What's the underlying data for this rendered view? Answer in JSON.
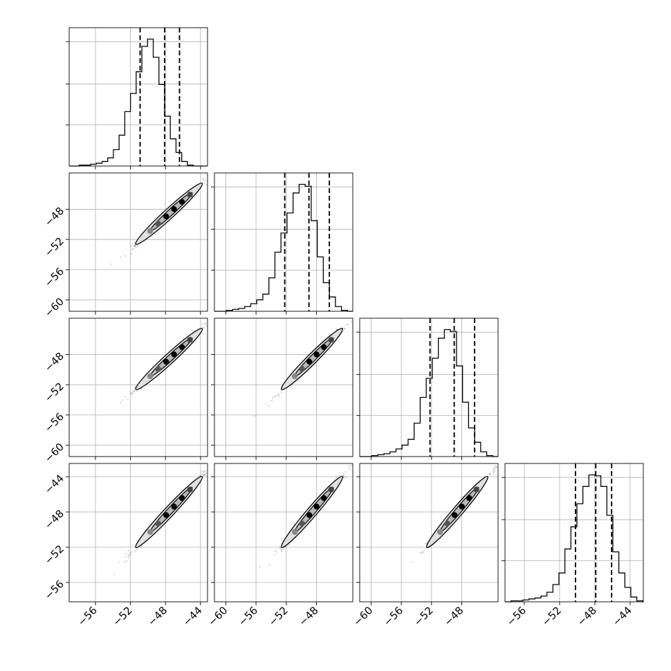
{
  "chart_data": {
    "type": "corner",
    "n_params": 4,
    "grid": true,
    "quantiles": [
      0.16,
      0.5,
      0.84
    ],
    "params": [
      {
        "mean": -47.6,
        "sd": 1.65,
        "range": [
          -59,
          -43.2
        ]
      },
      {
        "mean": -48.6,
        "sd": 1.75,
        "range": [
          -61.5,
          -43.2
        ]
      },
      {
        "mean": -48.6,
        "sd": 1.75,
        "range": [
          -61.5,
          -43.2
        ]
      },
      {
        "mean": -48.0,
        "sd": 1.75,
        "range": [
          -58.2,
          -42.5
        ]
      }
    ],
    "histograms": [
      {
        "param": 0,
        "quantile_values": [
          -50.9,
          -48.1,
          -46.4
        ],
        "edges_start": -58.5,
        "bin_width": 0.65,
        "counts": [
          0,
          1,
          1,
          2,
          3,
          5,
          9,
          18,
          34,
          60,
          80,
          104,
          132,
          140,
          120,
          90,
          55,
          30,
          15,
          5,
          1,
          0,
          0
        ]
      },
      {
        "param": 1,
        "quantile_values": [
          -52.2,
          -49.0,
          -46.3
        ],
        "edges_start": -61.5,
        "bin_width": 0.8,
        "counts": [
          0,
          0,
          1,
          2,
          3,
          5,
          8,
          12,
          18,
          35,
          62,
          82,
          103,
          124,
          133,
          131,
          95,
          57,
          30,
          15,
          5,
          1,
          0
        ]
      },
      {
        "param": 2,
        "quantile_values": [
          -52.2,
          -49.0,
          -46.3
        ],
        "edges_start": -61.5,
        "bin_width": 0.8,
        "counts": [
          0,
          0,
          1,
          2,
          3,
          5,
          8,
          12,
          18,
          35,
          62,
          82,
          103,
          124,
          133,
          131,
          95,
          57,
          30,
          15,
          5,
          1,
          0
        ]
      },
      {
        "param": 3,
        "quantile_values": [
          -50.2,
          -47.9,
          -46.1
        ],
        "edges_start": -58.2,
        "bin_width": 0.68,
        "counts": [
          0,
          1,
          1,
          2,
          3,
          4,
          6,
          10,
          18,
          30,
          55,
          78,
          102,
          120,
          132,
          131,
          120,
          90,
          52,
          30,
          15,
          5,
          1,
          0
        ]
      }
    ],
    "tick_labels": {
      "param_0_x": [
        "−56",
        "−52",
        "−48",
        "−44"
      ],
      "param_1_x": [
        "−60",
        "−56",
        "−52",
        "−48"
      ],
      "param_2_x": [
        "−60",
        "−56",
        "−52",
        "−48"
      ],
      "param_3_x": [
        "−56",
        "−52",
        "−48",
        "−44"
      ],
      "param_1_y": [
        "−48",
        "−52",
        "−56",
        "−60"
      ],
      "param_2_y": [
        "−48",
        "−52",
        "−56",
        "−60"
      ],
      "param_3_y": [
        "−44",
        "−48",
        "−52",
        "−56"
      ]
    },
    "tick_values": {
      "param_0": [
        -56,
        -52,
        -48,
        -44
      ],
      "param_1": [
        -60,
        -56,
        -52,
        -48
      ],
      "param_2": [
        -60,
        -56,
        -52,
        -48
      ],
      "param_3": [
        -56,
        -52,
        -48,
        -44
      ]
    }
  }
}
